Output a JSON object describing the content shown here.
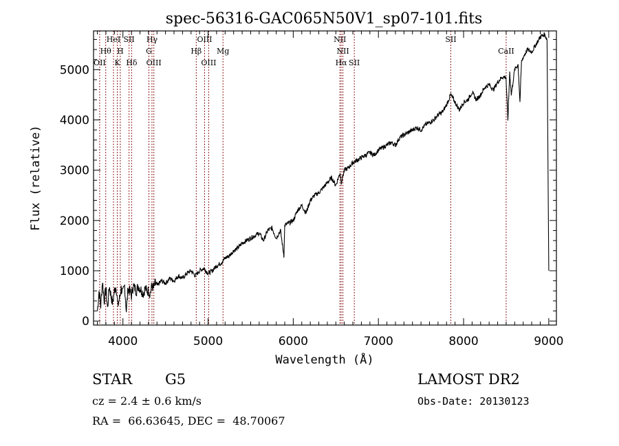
{
  "chart_data": {
    "type": "line",
    "title": "spec-56316-GAC065N50V1_sp07-101.fits",
    "xlabel": "Wavelength (Å)",
    "ylabel": "Flux (relative)",
    "xlim": [
      3655,
      9090
    ],
    "ylim": [
      -80,
      5770
    ],
    "xticks": [
      4000,
      5000,
      6000,
      7000,
      8000,
      9000
    ],
    "yticks": [
      0,
      1000,
      2000,
      3000,
      4000,
      5000
    ],
    "grid": false,
    "line_color": "#000000",
    "marker_color": "#8b1a1a",
    "spectrum": {
      "x": [
        3700,
        3720,
        3740,
        3760,
        3780,
        3800,
        3820,
        3840,
        3860,
        3880,
        3900,
        3920,
        3940,
        3960,
        3980,
        4000,
        4020,
        4040,
        4060,
        4080,
        4100,
        4120,
        4140,
        4160,
        4180,
        4200,
        4220,
        4240,
        4260,
        4280,
        4300,
        4320,
        4340,
        4360,
        4380,
        4400,
        4450,
        4500,
        4550,
        4600,
        4650,
        4700,
        4750,
        4800,
        4850,
        4900,
        4950,
        5000,
        5050,
        5100,
        5150,
        5200,
        5250,
        5300,
        5350,
        5400,
        5450,
        5500,
        5550,
        5600,
        5650,
        5700,
        5750,
        5800,
        5850,
        5890,
        5900,
        5950,
        6000,
        6050,
        6100,
        6150,
        6200,
        6250,
        6300,
        6350,
        6400,
        6450,
        6500,
        6550,
        6563,
        6600,
        6650,
        6700,
        6750,
        6800,
        6850,
        6900,
        6950,
        7000,
        7050,
        7100,
        7150,
        7200,
        7250,
        7300,
        7350,
        7400,
        7450,
        7500,
        7550,
        7600,
        7650,
        7700,
        7750,
        7800,
        7850,
        7900,
        7950,
        8000,
        8050,
        8100,
        8150,
        8200,
        8250,
        8300,
        8350,
        8400,
        8450,
        8498,
        8520,
        8542,
        8560,
        8600,
        8640,
        8662,
        8680,
        8700,
        8750,
        8800,
        8850,
        8900,
        8950,
        8980,
        9000
      ],
      "y": [
        200,
        600,
        300,
        800,
        400,
        650,
        250,
        700,
        500,
        350,
        600,
        700,
        300,
        450,
        650,
        550,
        700,
        200,
        650,
        600,
        500,
        700,
        650,
        600,
        700,
        650,
        600,
        550,
        650,
        600,
        600,
        550,
        700,
        650,
        750,
        700,
        800,
        750,
        850,
        800,
        900,
        850,
        950,
        1000,
        900,
        1000,
        1050,
        950,
        1000,
        1100,
        1150,
        1250,
        1300,
        1400,
        1450,
        1550,
        1600,
        1650,
        1700,
        1750,
        1600,
        1800,
        1850,
        1650,
        1800,
        1300,
        1900,
        1950,
        2000,
        2200,
        2300,
        2150,
        2400,
        2500,
        2550,
        2650,
        2750,
        2850,
        2700,
        2950,
        2750,
        3000,
        3050,
        3150,
        3200,
        3250,
        3300,
        3350,
        3300,
        3400,
        3450,
        3500,
        3550,
        3500,
        3650,
        3700,
        3750,
        3800,
        3850,
        3800,
        3900,
        3950,
        4000,
        4100,
        4150,
        4300,
        4500,
        4350,
        4200,
        4350,
        4400,
        4550,
        4400,
        4500,
        4650,
        4700,
        4600,
        4750,
        4850,
        4850,
        4000,
        4950,
        4500,
        5000,
        5100,
        4350,
        5150,
        5250,
        5400,
        5350,
        5500,
        5650,
        5700,
        5600,
        1000
      ]
    },
    "line_markers": [
      {
        "label": "OII",
        "wavelength": 3727,
        "row": 3
      },
      {
        "label": "Hθ",
        "wavelength": 3798,
        "row": 2
      },
      {
        "label": "HeI",
        "wavelength": 3889,
        "row": 1
      },
      {
        "label": "K",
        "wavelength": 3934,
        "row": 3
      },
      {
        "label": "H",
        "wavelength": 3969,
        "row": 2
      },
      {
        "label": "SII",
        "wavelength": 4072,
        "row": 1
      },
      {
        "label": "Hδ",
        "wavelength": 4102,
        "row": 3
      },
      {
        "label": "G",
        "wavelength": 4305,
        "row": 2
      },
      {
        "label": "Hγ",
        "wavelength": 4341,
        "row": 1
      },
      {
        "label": "OIII",
        "wavelength": 4363,
        "row": 3
      },
      {
        "label": "Hβ",
        "wavelength": 4861,
        "row": 2
      },
      {
        "label": "OIII",
        "wavelength": 4959,
        "row": 1
      },
      {
        "label": "OIII",
        "wavelength": 5007,
        "row": 3
      },
      {
        "label": "Mg",
        "wavelength": 5175,
        "row": 2
      },
      {
        "label": "NII",
        "wavelength": 6548,
        "row": 1
      },
      {
        "label": "NII",
        "wavelength": 6583,
        "row": 2
      },
      {
        "label": "Hα",
        "wavelength": 6563,
        "row": 3
      },
      {
        "label": "SII",
        "wavelength": 6717,
        "row": 3
      },
      {
        "label": "SII",
        "wavelength": 7850,
        "row": 1
      },
      {
        "label": "CaII",
        "wavelength": 8500,
        "row": 2
      }
    ]
  },
  "info": {
    "class": "STAR",
    "subclass": "G5",
    "redshift": "cz = 2.4 ± 0.6 km/s",
    "coords": "RA =  66.63645, DEC =  48.70067",
    "survey": "LAMOST DR2",
    "obs_date": "Obs-Date: 20130123"
  }
}
